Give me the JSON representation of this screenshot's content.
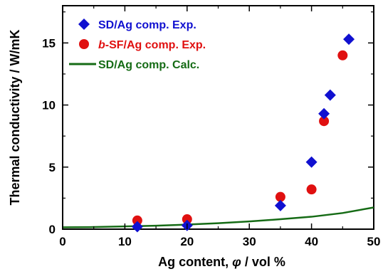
{
  "chart_data": {
    "type": "scatter",
    "title": "",
    "xlabel": {
      "prefix": "Ag content,",
      "symbol": "φ",
      "suffix": "/ vol %"
    },
    "ylabel": "Thermal conductivity / W/mK",
    "xlim": [
      0,
      50
    ],
    "ylim": [
      0,
      18
    ],
    "x_ticks": [
      0,
      10,
      20,
      30,
      40,
      50
    ],
    "y_ticks": [
      0,
      5,
      10,
      15
    ],
    "x_tick_labels": [
      "0",
      "10",
      "20",
      "30",
      "40",
      "50"
    ],
    "y_tick_labels": [
      "0",
      "5",
      "10",
      "15"
    ],
    "grid": false,
    "legend_position": "top-left",
    "series": [
      {
        "name": "SD/Ag comp. Exp.",
        "kind": "scatter",
        "marker": "diamond",
        "color": "#1010d0",
        "points": [
          [
            12,
            0.2
          ],
          [
            20,
            0.3
          ],
          [
            35,
            1.9
          ],
          [
            40,
            5.4
          ],
          [
            42,
            9.3
          ],
          [
            43,
            10.8
          ],
          [
            46,
            15.3
          ]
        ]
      },
      {
        "name_italic": "b",
        "name_rest": "-SF/Ag comp. Exp.",
        "kind": "scatter",
        "marker": "circle",
        "color": "#e01010",
        "points": [
          [
            12,
            0.7
          ],
          [
            20,
            0.8
          ],
          [
            35,
            2.6
          ],
          [
            40,
            3.2
          ],
          [
            42,
            8.7
          ],
          [
            45,
            14.0
          ]
        ]
      },
      {
        "name": "SD/Ag comp. Calc.",
        "kind": "line",
        "color": "#156b15",
        "points": [
          [
            0,
            0.15
          ],
          [
            5,
            0.17
          ],
          [
            10,
            0.22
          ],
          [
            15,
            0.28
          ],
          [
            20,
            0.37
          ],
          [
            25,
            0.48
          ],
          [
            30,
            0.62
          ],
          [
            35,
            0.8
          ],
          [
            40,
            1.0
          ],
          [
            45,
            1.3
          ],
          [
            50,
            1.75
          ]
        ]
      }
    ]
  }
}
